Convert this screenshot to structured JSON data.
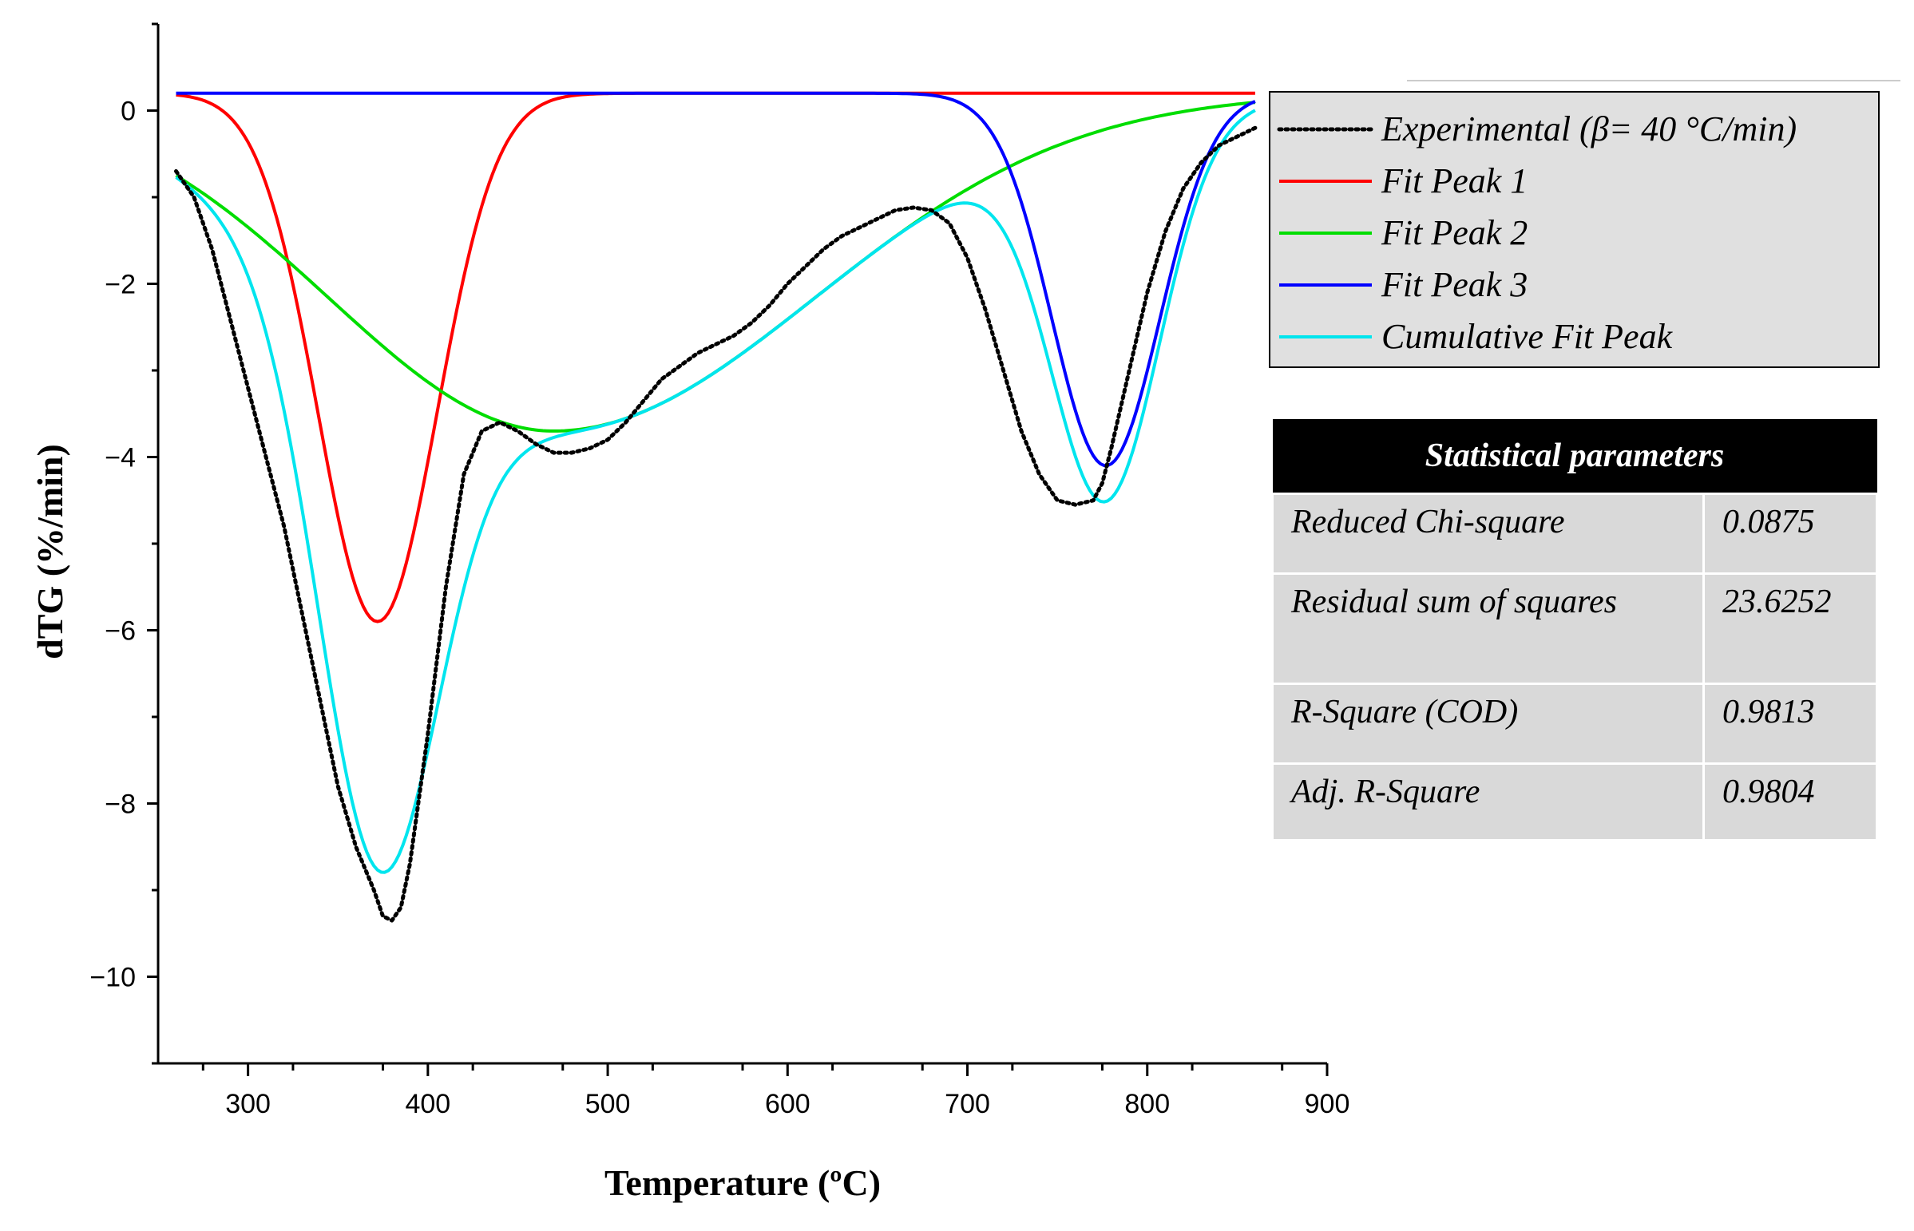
{
  "chart_data": {
    "type": "line",
    "xlabel": "Temperature (ºC)",
    "ylabel": "dTG (%/min)",
    "xlim": [
      250,
      900
    ],
    "ylim": [
      -11,
      1
    ],
    "xticks": [
      "300",
      "400",
      "500",
      "600",
      "700",
      "800",
      "900"
    ],
    "yticks": [
      "0",
      "−2",
      "−4",
      "−6",
      "−8",
      "−10"
    ],
    "series": [
      {
        "name": "Experimental (β= 40 °C/min)",
        "color": "#000000",
        "style": "dotted",
        "x": [
          260,
          270,
          280,
          290,
          300,
          310,
          320,
          330,
          340,
          350,
          360,
          370,
          375,
          380,
          385,
          390,
          400,
          410,
          420,
          430,
          440,
          450,
          460,
          470,
          480,
          490,
          500,
          510,
          520,
          530,
          540,
          550,
          560,
          570,
          580,
          590,
          600,
          610,
          620,
          630,
          640,
          650,
          660,
          670,
          680,
          690,
          700,
          710,
          720,
          730,
          740,
          750,
          760,
          770,
          775,
          780,
          790,
          800,
          810,
          820,
          830,
          840,
          850,
          860
        ],
        "y": [
          -0.7,
          -1.0,
          -1.6,
          -2.4,
          -3.2,
          -4.0,
          -4.8,
          -5.8,
          -6.8,
          -7.8,
          -8.5,
          -9.0,
          -9.3,
          -9.35,
          -9.2,
          -8.7,
          -7.2,
          -5.5,
          -4.2,
          -3.7,
          -3.6,
          -3.7,
          -3.85,
          -3.95,
          -3.95,
          -3.9,
          -3.8,
          -3.6,
          -3.35,
          -3.1,
          -2.95,
          -2.8,
          -2.7,
          -2.6,
          -2.45,
          -2.25,
          -2.0,
          -1.8,
          -1.6,
          -1.45,
          -1.35,
          -1.25,
          -1.15,
          -1.12,
          -1.15,
          -1.3,
          -1.7,
          -2.3,
          -3.0,
          -3.7,
          -4.2,
          -4.5,
          -4.55,
          -4.5,
          -4.3,
          -3.9,
          -3.0,
          -2.1,
          -1.4,
          -0.9,
          -0.6,
          -0.4,
          -0.3,
          -0.2
        ]
      },
      {
        "name": "Fit Peak 1",
        "color": "#ff0000",
        "style": "solid",
        "model": {
          "kind": "gauss",
          "base": 0.2,
          "center": 372,
          "amplitude": -6.1,
          "sigma_left": 33,
          "sigma_right": 33
        }
      },
      {
        "name": "Fit Peak 2",
        "color": "#00dd00",
        "style": "solid",
        "model": {
          "kind": "gauss",
          "base": 0.2,
          "center": 470,
          "amplitude": -3.9,
          "sigma_left": 125,
          "sigma_right": 145
        }
      },
      {
        "name": "Fit Peak 3",
        "color": "#0000ff",
        "style": "solid",
        "model": {
          "kind": "gauss",
          "base": 0.2,
          "center": 777,
          "amplitude": -4.3,
          "sigma_left": 30,
          "sigma_right": 30
        }
      },
      {
        "name": "Cumulative Fit Peak",
        "color": "#00e5ee",
        "style": "solid",
        "model": {
          "kind": "sum",
          "of": [
            1,
            2,
            3
          ],
          "base": 0.2
        }
      }
    ]
  },
  "stats": {
    "title": "Statistical parameters",
    "rows": [
      {
        "label": "Reduced Chi-square",
        "value": "0.0875"
      },
      {
        "label": "Residual sum of squares",
        "value": "23.6252"
      },
      {
        "label": "R-Square (COD)",
        "value": "0.9813"
      },
      {
        "label": "Adj. R-Square",
        "value": "0.9804"
      }
    ]
  }
}
